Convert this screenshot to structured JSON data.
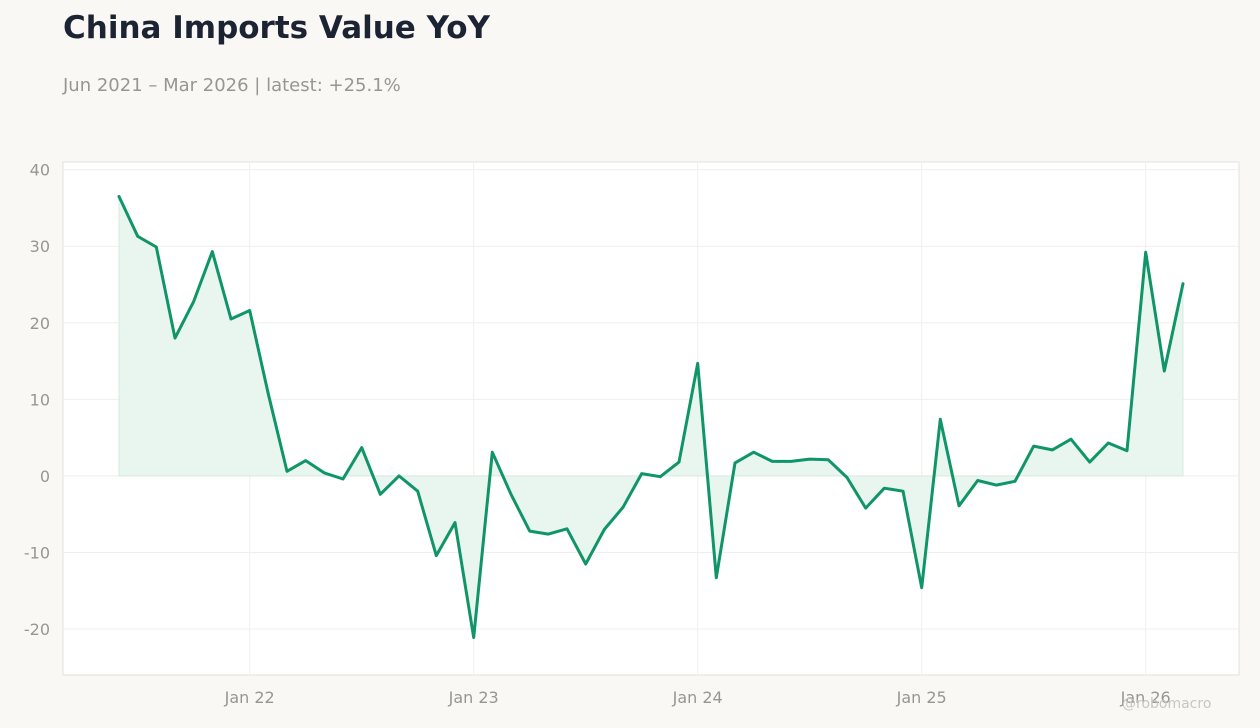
{
  "title": "China Imports Value YoY",
  "subtitle": "Jun 2021 – Mar 2026 | latest: +25.1%",
  "watermark": "@robomacro",
  "colors": {
    "line": "#0f9568",
    "fill": "#e9f5ef",
    "background": "#f9f8f5",
    "plot_background": "#ffffff",
    "grid": "#f0efec",
    "text": "#1c2333",
    "muted": "#999690"
  },
  "chart_data": {
    "type": "area",
    "title": "China Imports Value YoY",
    "subtitle": "Jun 2021 – Mar 2026 | latest: +25.1%",
    "xlabel": "",
    "ylabel": "",
    "x_start": "2021-06",
    "x_end": "2026-03",
    "xlim": [
      "2021-03",
      "2026-06"
    ],
    "ylim": [
      -26,
      41
    ],
    "grid": true,
    "legend": "none",
    "x_ticks": [
      {
        "date": "2022-01",
        "label": "Jan 22"
      },
      {
        "date": "2023-01",
        "label": "Jan 23"
      },
      {
        "date": "2024-01",
        "label": "Jan 24"
      },
      {
        "date": "2025-01",
        "label": "Jan 25"
      },
      {
        "date": "2026-01",
        "label": "Jan 26"
      }
    ],
    "y_ticks": [
      {
        "value": 40,
        "label": "40"
      },
      {
        "value": 30,
        "label": "30"
      },
      {
        "value": 20,
        "label": "20"
      },
      {
        "value": 10,
        "label": "10"
      },
      {
        "value": 0,
        "label": "0"
      },
      {
        "value": -10,
        "label": "-10"
      },
      {
        "value": -20,
        "label": "-20"
      }
    ],
    "series": [
      {
        "values": [
          36.5,
          31.3,
          29.9,
          18.0,
          22.8,
          29.3,
          20.5,
          21.6,
          10.7,
          0.6,
          2.0,
          0.4,
          -0.4,
          3.7,
          -2.4,
          0.0,
          -2.0,
          -10.4,
          -6.1,
          -21.1,
          3.1,
          -2.4,
          -7.2,
          -7.6,
          -6.9,
          -11.5,
          -7.0,
          -4.1,
          0.3,
          -0.1,
          1.8,
          14.7,
          -13.3,
          1.7,
          3.1,
          1.9,
          1.9,
          2.2,
          2.1,
          -0.2,
          -4.2,
          -1.6,
          -2.0,
          -14.6,
          7.4,
          -3.9,
          -0.6,
          -1.2,
          -0.7,
          3.9,
          3.4,
          4.8,
          1.8,
          4.3,
          3.3,
          29.2,
          13.7,
          25.1
        ]
      }
    ]
  }
}
